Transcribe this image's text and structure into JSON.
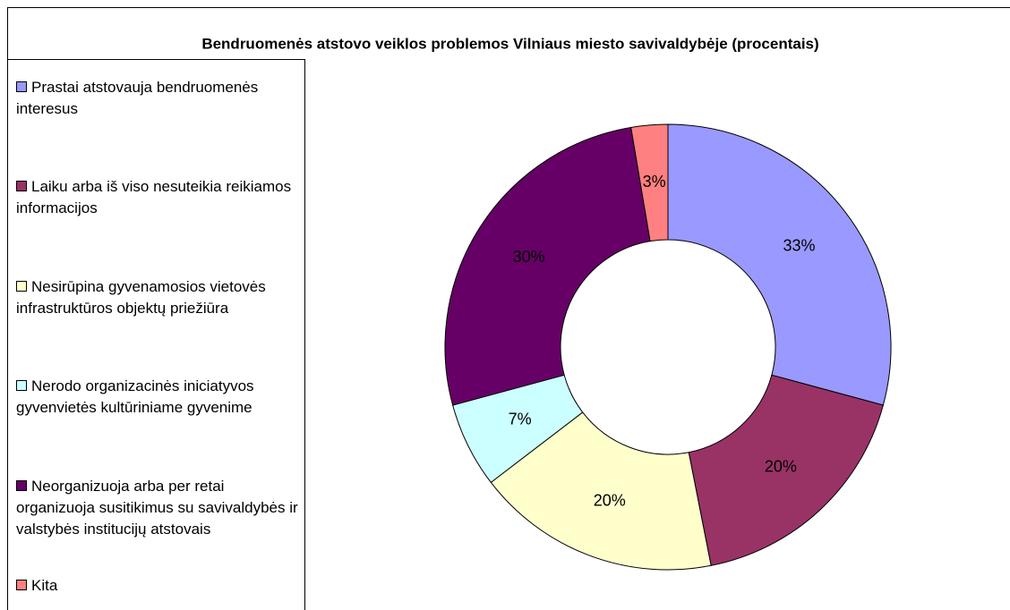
{
  "chart_data": {
    "type": "donut",
    "title": "Bendruomenės atstovo veiklos problemos Vilniaus miesto savivaldybėje (procentais)",
    "categories": [
      "Prastai atstovauja bendruomenės interesus",
      "Laiku arba iš viso nesuteikia reikiamos informacijos",
      "Nesirūpina gyvenamosios vietovės infrastruktūros objektų priežiūra",
      "Nerodo organizacinės iniciatyvos gyvenvietės kultūriniame gyvenime",
      "Neorganizuoja arba per retai organizuoja susitikimus su savivaldybės ir valstybės institucijų atstovais",
      "Kita"
    ],
    "values": [
      33,
      20,
      20,
      7,
      30,
      3
    ],
    "value_labels": [
      "33%",
      "20%",
      "20%",
      "7%",
      "30%",
      "3%"
    ],
    "colors": [
      "#9999ff",
      "#993366",
      "#ffffcc",
      "#ccffff",
      "#660066",
      "#ff8080"
    ],
    "legend": "left"
  }
}
